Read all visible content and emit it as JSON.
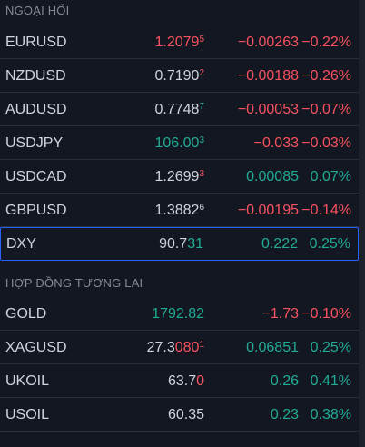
{
  "colors": {
    "up": "#22ab94",
    "down": "#f7525f",
    "neutral": "#d1d4dc",
    "selected_border": "#2962ff"
  },
  "sections": [
    {
      "title": "NGOẠI HỐI",
      "rows": [
        {
          "symbol": "EURUSD",
          "last_main": "1.2079",
          "last_tail": "",
          "last_sup": "5",
          "main_color": "red",
          "tail_color": "red",
          "change": "−0.00263",
          "percent": "−0.22%",
          "dir": "red"
        },
        {
          "symbol": "NZDUSD",
          "last_main": "0.7190",
          "last_tail": "",
          "last_sup": "2",
          "main_color": "white",
          "tail_color": "red",
          "change": "−0.00188",
          "percent": "−0.26%",
          "dir": "red"
        },
        {
          "symbol": "AUDUSD",
          "last_main": "0.7748",
          "last_tail": "",
          "last_sup": "7",
          "main_color": "white",
          "tail_color": "green",
          "change": "−0.00053",
          "percent": "−0.07%",
          "dir": "red"
        },
        {
          "symbol": "USDJPY",
          "last_main": "106.00",
          "last_tail": "",
          "last_sup": "3",
          "main_color": "green",
          "tail_color": "green",
          "change": "−0.033",
          "percent": "−0.03%",
          "dir": "red"
        },
        {
          "symbol": "USDCAD",
          "last_main": "1.2699",
          "last_tail": "",
          "last_sup": "3",
          "main_color": "white",
          "tail_color": "red",
          "change": "0.00085",
          "percent": "0.07%",
          "dir": "green"
        },
        {
          "symbol": "GBPUSD",
          "last_main": "1.3882",
          "last_tail": "",
          "last_sup": "6",
          "main_color": "white",
          "tail_color": "white",
          "change": "−0.00195",
          "percent": "−0.14%",
          "dir": "red"
        },
        {
          "symbol": "DXY",
          "last_main": "90.7",
          "last_tail": "31",
          "last_sup": "",
          "main_color": "white",
          "tail_color": "green",
          "change": "0.222",
          "percent": "0.25%",
          "dir": "green",
          "selected": true
        }
      ]
    },
    {
      "title": "HỢP ĐỒNG TƯƠNG LAI",
      "rows": [
        {
          "symbol": "GOLD",
          "last_main": "1792.82",
          "last_tail": "",
          "last_sup": "",
          "main_color": "green",
          "tail_color": "green",
          "change": "−1.73",
          "percent": "−0.10%",
          "dir": "red"
        },
        {
          "symbol": "XAGUSD",
          "last_main": "27.3",
          "last_tail": "080",
          "last_sup": "1",
          "main_color": "white",
          "tail_color": "red",
          "change": "0.06851",
          "percent": "0.25%",
          "dir": "green"
        },
        {
          "symbol": "UKOIL",
          "last_main": "63.7",
          "last_tail": "0",
          "last_sup": "",
          "main_color": "white",
          "tail_color": "red",
          "change": "0.26",
          "percent": "0.41%",
          "dir": "green"
        },
        {
          "symbol": "USOIL",
          "last_main": "60.35",
          "last_tail": "",
          "last_sup": "",
          "main_color": "white",
          "tail_color": "white",
          "change": "0.23",
          "percent": "0.38%",
          "dir": "green"
        }
      ]
    }
  ]
}
